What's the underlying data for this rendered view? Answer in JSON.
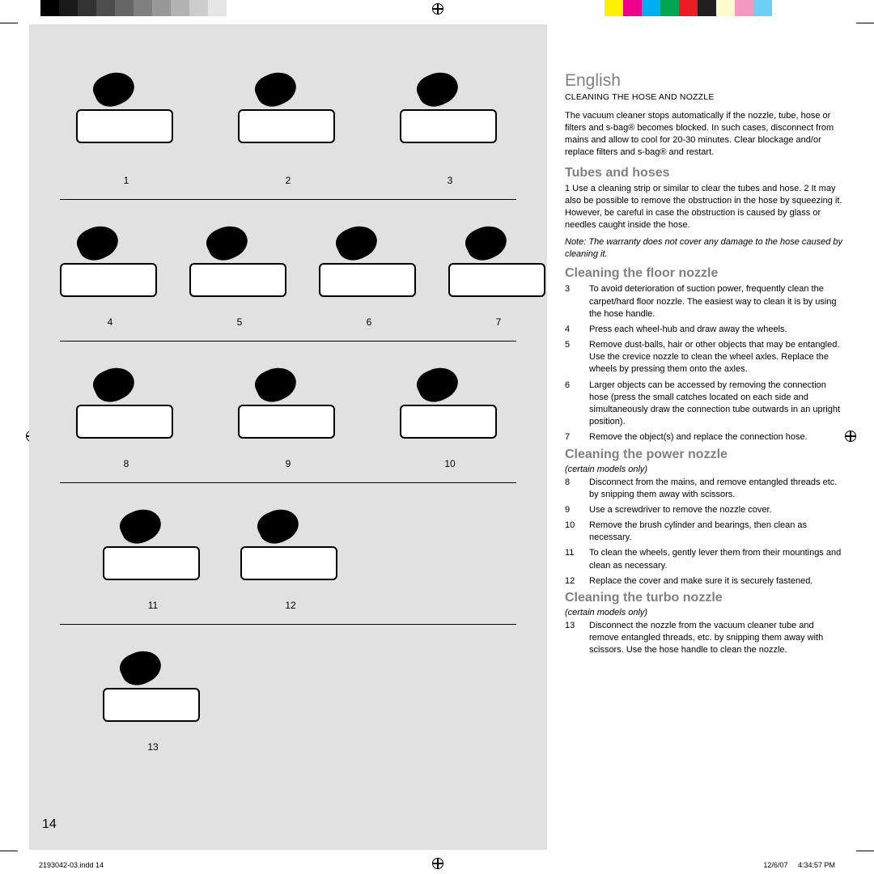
{
  "registration_marks": true,
  "swatches": {
    "top_left_gray": [
      "#000000",
      "#1a1a1a",
      "#333333",
      "#4d4d4d",
      "#666666",
      "#808080",
      "#999999",
      "#b3b3b3",
      "#cccccc",
      "#e6e6e6",
      "#ffffff"
    ],
    "top_right_color": [
      "#fff200",
      "#ec008c",
      "#00aeef",
      "#00a651",
      "#ed1c24",
      "#231f20",
      "#fffbcc",
      "#f49ac1",
      "#6dcff6",
      "#ffffff"
    ]
  },
  "figure_panel": {
    "background": "#e1e1e1",
    "rows": [
      {
        "separator_after": true,
        "figs": [
          {
            "num": "1"
          },
          {
            "num": "2"
          },
          {
            "num": "3"
          }
        ]
      },
      {
        "separator_after": true,
        "figs": [
          {
            "num": "4"
          },
          {
            "num": "5"
          },
          {
            "num": "6"
          },
          {
            "num": "7"
          }
        ]
      },
      {
        "separator_after": true,
        "figs": [
          {
            "num": "8"
          },
          {
            "num": "9"
          },
          {
            "num": "10"
          }
        ]
      },
      {
        "separator_after": true,
        "figs": [
          {
            "num": "11"
          },
          {
            "num": "12"
          }
        ]
      },
      {
        "separator_after": false,
        "figs": [
          {
            "num": "13"
          }
        ]
      }
    ]
  },
  "page_number": "14",
  "text": {
    "lang_title": "English",
    "subtitle": "CLEANING THE HOSE AND NOZZLE",
    "intro": "The vacuum cleaner stops automatically if the nozzle, tube, hose or filters and s-bag® becomes blocked. In such cases, disconnect from mains and allow to cool for 20-30 minutes. Clear blockage and/or replace filters and s-bag® and restart.",
    "tubes_hoses": {
      "title": "Tubes and hoses",
      "p": "1 Use a cleaning strip or similar to clear the tubes and hose. 2 It may also be possible to remove the obstruction in the hose by squeezing it. However, be careful in case the obstruction is caused by glass or needles caught inside the hose.",
      "note": "Note: The warranty does not cover any damage to the hose caused by cleaning it."
    },
    "floor_nozzle": {
      "title": "Cleaning the floor nozzle",
      "items": [
        {
          "n": "3",
          "t": "To avoid deterioration of suction power, frequently clean the carpet/hard floor nozzle. The easiest way to clean it is by using the hose handle."
        },
        {
          "n": "4",
          "t": "Press each wheel-hub and draw away the wheels."
        },
        {
          "n": "5",
          "t": "Remove dust-balls, hair or other objects that may be entangled. Use the crevice nozzle to clean the wheel axles. Replace the wheels by pressing them onto the axles."
        },
        {
          "n": "6",
          "t": "Larger objects can be accessed by removing the connection hose (press the small catches located on each side and simultaneously draw the connection tube outwards in an upright position)."
        },
        {
          "n": "7",
          "t": "Remove the object(s) and replace the connection hose."
        }
      ]
    },
    "power_nozzle": {
      "title": "Cleaning the power nozzle",
      "sub": "(certain models only)",
      "items": [
        {
          "n": "8",
          "t": "Disconnect from the mains, and remove entangled threads etc. by snipping them away with scissors."
        },
        {
          "n": "9",
          "t": "Use a screwdriver to remove the nozzle cover."
        },
        {
          "n": "10",
          "t": "Remove the brush cylinder and bearings, then clean as necessary."
        },
        {
          "n": "11",
          "t": "To clean the wheels, gently lever them from their mountings and clean as necessary."
        },
        {
          "n": "12",
          "t": "Replace the cover and make sure it is securely fastened."
        }
      ]
    },
    "turbo_nozzle": {
      "title": "Cleaning the turbo nozzle",
      "sub": "(certain models only)",
      "items": [
        {
          "n": "13",
          "t": "Disconnect the nozzle from the vacuum cleaner tube and remove entangled threads, etc. by snipping them away with scissors. Use the hose handle to clean the nozzle."
        }
      ]
    }
  },
  "footer": {
    "left": "2193042-03.indd   14",
    "date": "12/6/07",
    "time": "4:34:57 PM"
  },
  "colors": {
    "heading_gray": "#808083",
    "text_black": "#000000",
    "panel_gray": "#e1e1e1",
    "page_white": "#ffffff"
  },
  "typography": {
    "lang_title_pt": 21,
    "h2_pt": 16,
    "body_pt": 11,
    "subtitle_pt": 10.5,
    "footer_pt": 9
  }
}
